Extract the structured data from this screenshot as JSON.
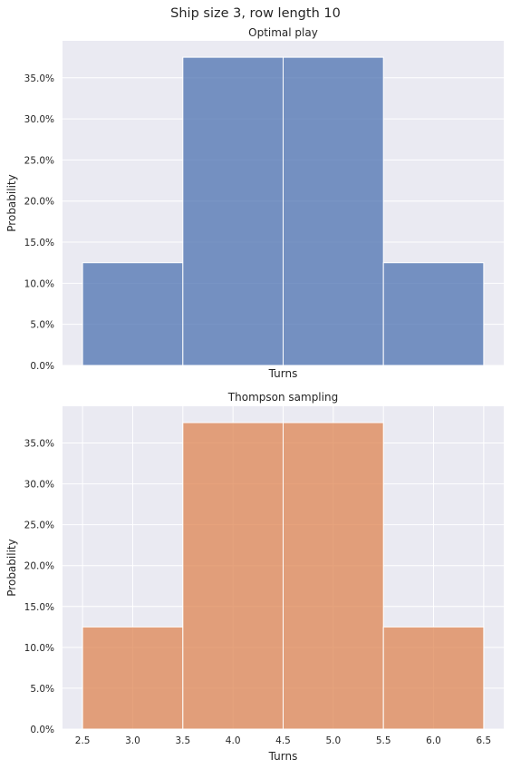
{
  "figure": {
    "title": "Ship size 3, row length 10",
    "background": "#ffffff",
    "panel_bg": "#eaeaf2",
    "grid_color": "#ffffff"
  },
  "chart_data": [
    {
      "type": "bar",
      "title": "Optimal play",
      "xlabel": "Turns",
      "ylabel": "Probability",
      "bins": [
        [
          2.5,
          3.5
        ],
        [
          3.5,
          4.5
        ],
        [
          4.5,
          5.5
        ],
        [
          5.5,
          6.5
        ]
      ],
      "values": [
        0.125,
        0.375,
        0.375,
        0.125
      ],
      "xlim": [
        2.3,
        6.7
      ],
      "ylim": [
        0,
        0.395
      ],
      "yticks": [
        0,
        0.05,
        0.1,
        0.15,
        0.2,
        0.25,
        0.3,
        0.35
      ],
      "ytick_labels": [
        "0.0%",
        "5.0%",
        "10.0%",
        "15.0%",
        "20.0%",
        "25.0%",
        "30.0%",
        "35.0%"
      ],
      "xtick_labels": [],
      "grid": true,
      "color": "#4c72b0"
    },
    {
      "type": "bar",
      "title": "Thompson sampling",
      "xlabel": "Turns",
      "ylabel": "Probability",
      "bins": [
        [
          2.5,
          3.5
        ],
        [
          3.5,
          4.5
        ],
        [
          4.5,
          5.5
        ],
        [
          5.5,
          6.5
        ]
      ],
      "values": [
        0.125,
        0.375,
        0.375,
        0.125
      ],
      "xlim": [
        2.3,
        6.7
      ],
      "ylim": [
        0,
        0.395
      ],
      "yticks": [
        0,
        0.05,
        0.1,
        0.15,
        0.2,
        0.25,
        0.3,
        0.35
      ],
      "ytick_labels": [
        "0.0%",
        "5.0%",
        "10.0%",
        "15.0%",
        "20.0%",
        "25.0%",
        "30.0%",
        "35.0%"
      ],
      "xticks": [
        2.5,
        3.0,
        3.5,
        4.0,
        4.5,
        5.0,
        5.5,
        6.0,
        6.5
      ],
      "xtick_labels": [
        "2.5",
        "3.0",
        "3.5",
        "4.0",
        "4.5",
        "5.0",
        "5.5",
        "6.0",
        "6.5"
      ],
      "grid": true,
      "color": "#dd8452"
    }
  ]
}
